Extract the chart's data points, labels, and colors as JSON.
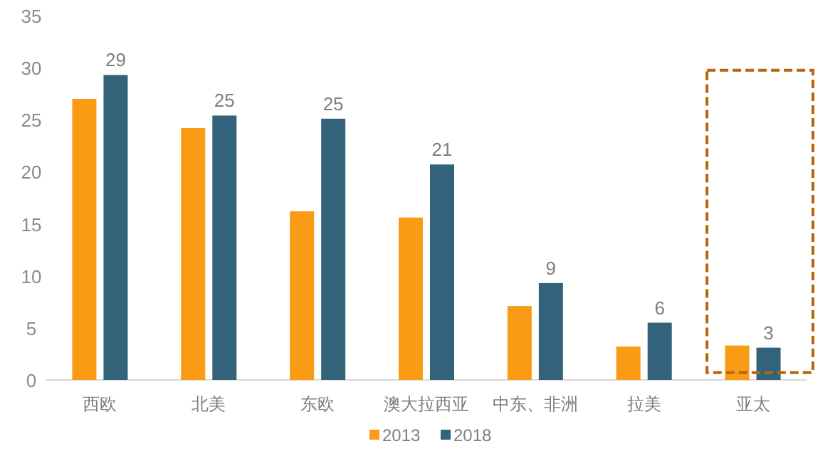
{
  "chart_data": {
    "type": "bar",
    "categories": [
      "西欧",
      "北美",
      "东欧",
      "澳大拉西亚",
      "中东、非洲",
      "拉美",
      "亚太"
    ],
    "series": [
      {
        "name": "2013",
        "color": "#fa9b16",
        "values": [
          27.0,
          24.2,
          16.2,
          15.6,
          7.1,
          3.2,
          3.3
        ]
      },
      {
        "name": "2018",
        "color": "#33637b",
        "values": [
          29.3,
          25.4,
          25.1,
          20.7,
          9.3,
          5.5,
          3.1
        ],
        "value_labels": [
          "29",
          "25",
          "25",
          "21",
          "9",
          "6",
          "3"
        ]
      }
    ],
    "ylim": [
      0,
      35
    ],
    "yticks": [
      0,
      5,
      10,
      15,
      20,
      25,
      30,
      35
    ],
    "grid": false,
    "legend": "bottom"
  }
}
